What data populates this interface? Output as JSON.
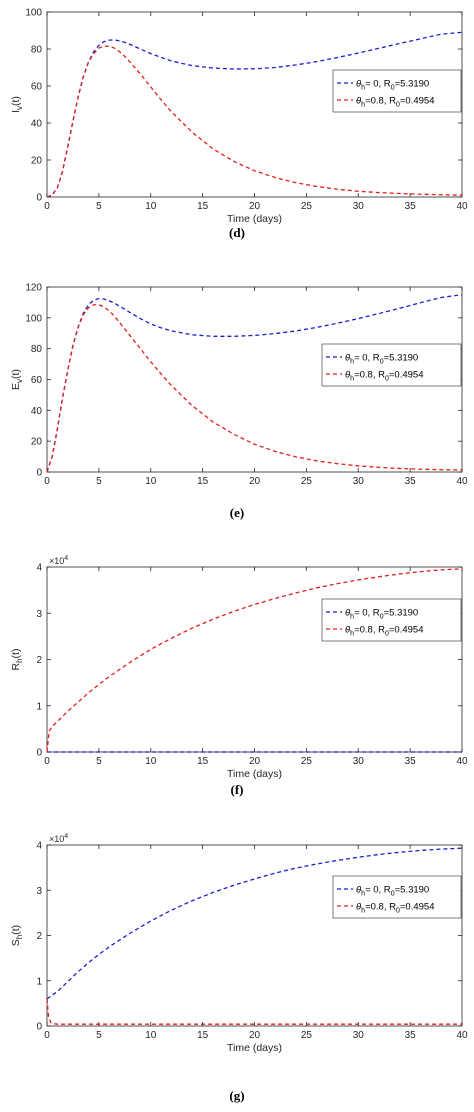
{
  "chart_data": [
    {
      "type": "line",
      "panel": "(d)",
      "ylabel_main": "I",
      "ylabel_sub": "v",
      "ylabel_tail": "(t)",
      "xlabel": "Time (days)",
      "exponent_base": "",
      "exponent_power": "",
      "xlim": [
        0,
        40
      ],
      "ylim": [
        0,
        100
      ],
      "xticks": [
        "0",
        "5",
        "10",
        "15",
        "20",
        "25",
        "30",
        "35",
        "40"
      ],
      "yticks": [
        "0",
        "20",
        "40",
        "60",
        "80",
        "100"
      ],
      "legend_position": "center-right",
      "series": [
        {
          "legend_parts": [
            "θ",
            "h",
            "= 0, R",
            "0",
            "=5.3190"
          ],
          "color": "#1f1fcc",
          "x": [
            0,
            0.5,
            1,
            1.5,
            2,
            2.5,
            3,
            3.5,
            4,
            4.5,
            5,
            5.5,
            6,
            6.5,
            7,
            7.5,
            8,
            9,
            10,
            11,
            12,
            14,
            16,
            18,
            20,
            22,
            24,
            26,
            28,
            30,
            32,
            34,
            36,
            38,
            40
          ],
          "y": [
            0,
            1,
            5,
            14,
            27,
            41,
            54,
            65,
            73,
            78.5,
            82,
            84,
            84.8,
            84.9,
            84.4,
            83.6,
            82.5,
            80,
            77.5,
            75.5,
            73.5,
            71,
            69.7,
            69.2,
            69.3,
            70,
            71.4,
            73.2,
            75.4,
            77.8,
            80.4,
            83,
            85.5,
            88,
            89
          ]
        },
        {
          "legend_parts": [
            "θ",
            "h",
            "=0.8, R",
            "0",
            "=0.4954"
          ],
          "color": "#e0201b",
          "x": [
            0,
            0.5,
            1,
            1.5,
            2,
            2.5,
            3,
            3.5,
            4,
            4.5,
            5,
            5.5,
            6,
            6.5,
            7,
            7.5,
            8,
            9,
            10,
            11,
            12,
            14,
            16,
            18,
            20,
            22,
            24,
            26,
            28,
            30,
            32,
            34,
            36,
            38,
            40
          ],
          "y": [
            0,
            1,
            5,
            14,
            27,
            41,
            54,
            65,
            73,
            77.5,
            80.5,
            81.5,
            81.5,
            80.5,
            78.5,
            76,
            73,
            66.5,
            59.5,
            52.5,
            46,
            35,
            26,
            19.3,
            14.2,
            10.5,
            7.7,
            5.7,
            4.2,
            3.1,
            2.4,
            1.9,
            1.5,
            1.2,
            1
          ]
        }
      ]
    },
    {
      "type": "line",
      "panel": "(e)",
      "ylabel_main": "E",
      "ylabel_sub": "v",
      "ylabel_tail": "(t)",
      "xlabel": "",
      "exponent_base": "",
      "exponent_power": "",
      "xlim": [
        0,
        40
      ],
      "ylim": [
        0,
        120
      ],
      "xticks": [
        "0",
        "5",
        "10",
        "15",
        "20",
        "25",
        "30",
        "35",
        "40"
      ],
      "yticks": [
        "0",
        "20",
        "40",
        "60",
        "80",
        "100",
        "120"
      ],
      "legend_position": "center-right",
      "series": [
        {
          "legend_parts": [
            "θ",
            "h",
            "= 0, R",
            "0",
            "=5.3190"
          ],
          "color": "#1f1fcc",
          "x": [
            0,
            0.5,
            1,
            1.5,
            2,
            2.5,
            3,
            3.5,
            4,
            4.5,
            5,
            5.5,
            6,
            6.5,
            7,
            8,
            9,
            10,
            11,
            12,
            14,
            16,
            18,
            20,
            22,
            24,
            26,
            28,
            30,
            32,
            34,
            36,
            38,
            40
          ],
          "y": [
            0,
            10,
            28,
            48,
            66,
            82,
            94,
            103,
            108.5,
            111.5,
            112.5,
            112.2,
            111,
            109.5,
            107.5,
            103.5,
            99.5,
            96,
            93.5,
            91.5,
            89,
            88,
            88,
            88.6,
            89.8,
            91.5,
            93.8,
            96.5,
            99.5,
            102.8,
            106.2,
            109.8,
            113.2,
            115
          ]
        },
        {
          "legend_parts": [
            "θ",
            "h",
            "=0.8, R",
            "0",
            "=0.4954"
          ],
          "color": "#e0201b",
          "x": [
            0,
            0.5,
            1,
            1.5,
            2,
            2.5,
            3,
            3.5,
            4,
            4.5,
            5,
            5.5,
            6,
            6.5,
            7,
            8,
            9,
            10,
            11,
            12,
            14,
            16,
            18,
            20,
            22,
            24,
            26,
            28,
            30,
            32,
            34,
            36,
            38,
            40
          ],
          "y": [
            0,
            10,
            28,
            48,
            66,
            82,
            94,
            102,
            106.5,
            108.5,
            108.5,
            107,
            104.5,
            101,
            97,
            88.5,
            80,
            71.5,
            63.5,
            56,
            43,
            32.5,
            24.5,
            18,
            13.3,
            9.8,
            7.2,
            5.4,
            4,
            3,
            2.3,
            1.8,
            1.5,
            1.3
          ]
        }
      ]
    },
    {
      "type": "line",
      "panel": "(f)",
      "ylabel_main": "R",
      "ylabel_sub": "h",
      "ylabel_tail": "(t)",
      "xlabel": "Time (days)",
      "exponent_base": "×10",
      "exponent_power": "4",
      "xlim": [
        0,
        40
      ],
      "ylim": [
        0,
        4
      ],
      "xticks": [
        "0",
        "5",
        "10",
        "15",
        "20",
        "25",
        "30",
        "35",
        "40"
      ],
      "yticks": [
        "0",
        "1",
        "2",
        "3",
        "4"
      ],
      "legend_position": "top-right",
      "series": [
        {
          "legend_parts": [
            "θ",
            "h",
            "= 0, R",
            "0",
            "=5.3190"
          ],
          "color": "#1f1fcc",
          "x": [
            0,
            40
          ],
          "y": [
            0,
            0
          ]
        },
        {
          "legend_parts": [
            "θ",
            "h",
            "=0.8, R",
            "0",
            "=0.4954"
          ],
          "color": "#e0201b",
          "x": [
            0,
            0.2,
            0.5,
            1,
            2,
            3,
            4,
            5,
            6,
            8,
            10,
            12,
            14,
            16,
            18,
            20,
            22,
            24,
            26,
            28,
            30,
            32,
            34,
            36,
            38,
            40
          ],
          "y": [
            0,
            0.45,
            0.55,
            0.66,
            0.88,
            1.08,
            1.28,
            1.46,
            1.63,
            1.94,
            2.22,
            2.46,
            2.68,
            2.87,
            3.04,
            3.19,
            3.32,
            3.44,
            3.55,
            3.64,
            3.72,
            3.79,
            3.85,
            3.9,
            3.94,
            3.96
          ]
        }
      ]
    },
    {
      "type": "line",
      "panel": "(g)",
      "ylabel_main": "S",
      "ylabel_sub": "h",
      "ylabel_tail": "(t)",
      "xlabel": "Time (days)",
      "exponent_base": "×10",
      "exponent_power": "4",
      "xlim": [
        0,
        40
      ],
      "ylim": [
        0,
        4
      ],
      "xticks": [
        "0",
        "5",
        "10",
        "15",
        "20",
        "25",
        "30",
        "35",
        "40"
      ],
      "yticks": [
        "0",
        "1",
        "2",
        "3",
        "4"
      ],
      "legend_position": "top-right",
      "series": [
        {
          "legend_parts": [
            "θ",
            "h",
            "= 0, R",
            "0",
            "=5.3190"
          ],
          "color": "#1f1fcc",
          "x": [
            0,
            0.5,
            1,
            2,
            3,
            4,
            5,
            6,
            8,
            10,
            12,
            14,
            16,
            18,
            20,
            22,
            24,
            26,
            28,
            30,
            32,
            34,
            36,
            38,
            40
          ],
          "y": [
            0.6,
            0.68,
            0.76,
            0.98,
            1.2,
            1.4,
            1.58,
            1.75,
            2.05,
            2.32,
            2.56,
            2.77,
            2.95,
            3.11,
            3.25,
            3.38,
            3.49,
            3.58,
            3.66,
            3.73,
            3.79,
            3.84,
            3.88,
            3.91,
            3.93
          ]
        },
        {
          "legend_parts": [
            "θ",
            "h",
            "=0.8, R",
            "0",
            "=0.4954"
          ],
          "color": "#e0201b",
          "x": [
            0,
            0.15,
            0.4,
            1,
            40
          ],
          "y": [
            0.6,
            0.2,
            0.06,
            0.04,
            0.04
          ]
        }
      ]
    }
  ]
}
